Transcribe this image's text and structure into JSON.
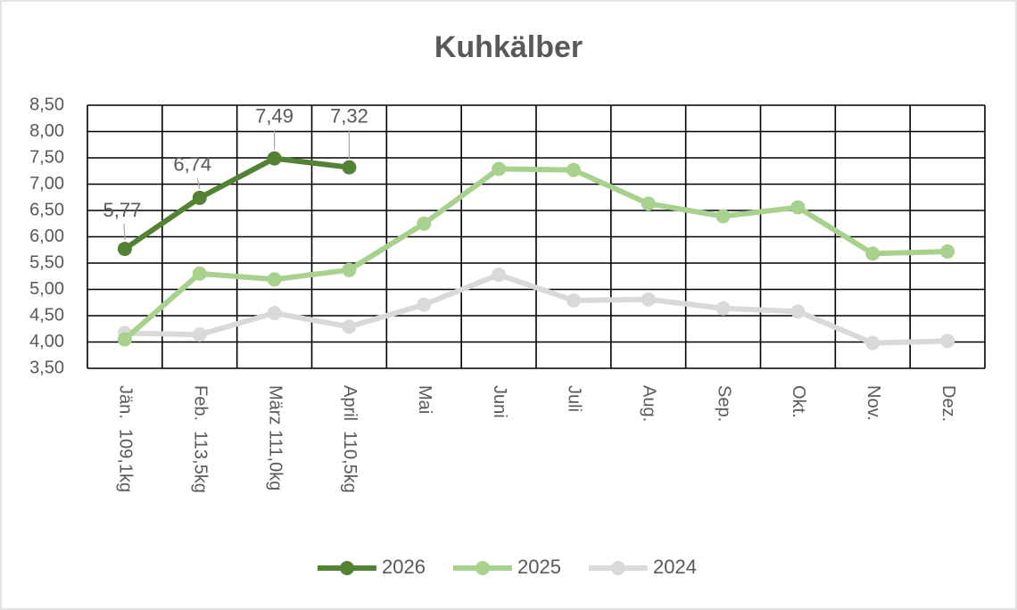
{
  "chart_data": {
    "type": "line",
    "title": "Kuhkälber",
    "categories": [
      "Jän.  109,1kg",
      "Feb.  113,5kg",
      "März 111,0kg",
      "April  110,5kg",
      "Mai",
      "Juni",
      "Juli",
      "Aug.",
      "Sep.",
      "Okt.",
      "Nov.",
      "Dez."
    ],
    "series": [
      {
        "name": "2026",
        "color": "#548235",
        "values": [
          5.77,
          6.74,
          7.49,
          7.32,
          null,
          null,
          null,
          null,
          null,
          null,
          null,
          null
        ],
        "value_labels": [
          "5,77",
          "6,74",
          "7,49",
          "7,32",
          null,
          null,
          null,
          null,
          null,
          null,
          null,
          null
        ]
      },
      {
        "name": "2025",
        "color": "#a9d18e",
        "values": [
          4.05,
          5.3,
          5.19,
          5.37,
          6.25,
          7.29,
          7.27,
          6.63,
          6.39,
          6.56,
          5.68,
          5.72
        ]
      },
      {
        "name": "2024",
        "color": "#d9d9d9",
        "values": [
          4.17,
          4.14,
          4.55,
          4.29,
          4.71,
          5.28,
          4.79,
          4.81,
          4.64,
          4.58,
          3.98,
          4.02
        ]
      }
    ],
    "ylim": [
      3.5,
      8.5
    ],
    "yticks": [
      {
        "value": 3.5,
        "label": "3,50"
      },
      {
        "value": 4,
        "label": "4,00"
      },
      {
        "value": 4.5,
        "label": "4,50"
      },
      {
        "value": 5,
        "label": "5,00"
      },
      {
        "value": 5.5,
        "label": "5,50"
      },
      {
        "value": 6,
        "label": "6,00"
      },
      {
        "value": 6.5,
        "label": "6,50"
      },
      {
        "value": 7,
        "label": "7,00"
      },
      {
        "value": 7.5,
        "label": "7,50"
      },
      {
        "value": 8,
        "label": "8,00"
      },
      {
        "value": 8.5,
        "label": "8,50"
      }
    ],
    "grid": true,
    "legend": "bottom"
  }
}
